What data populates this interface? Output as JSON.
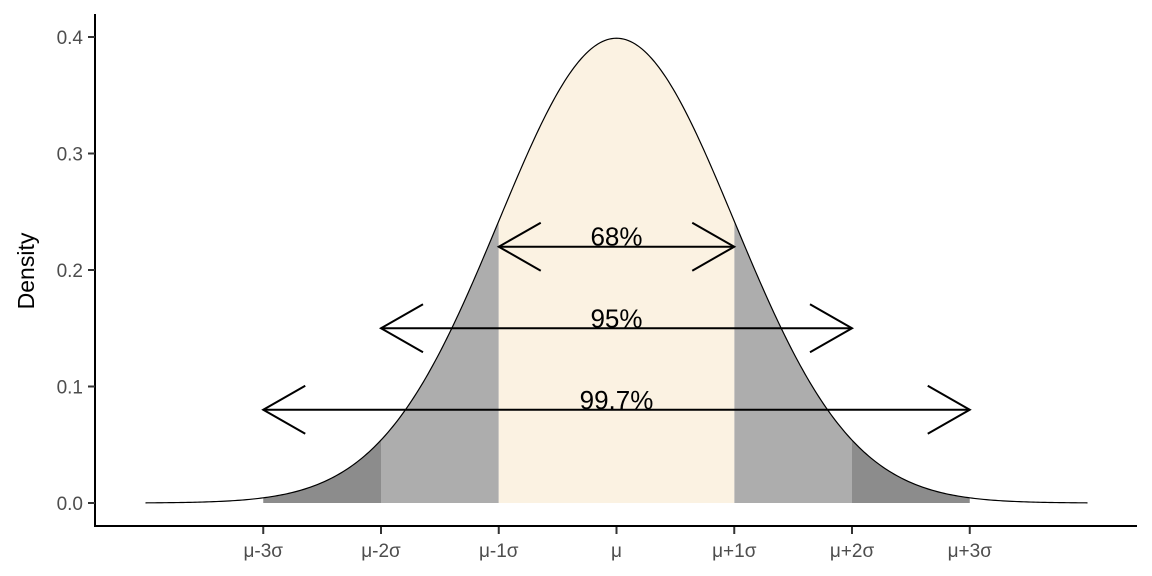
{
  "chart_data": {
    "type": "area",
    "title": "",
    "xlabel": "",
    "ylabel": "Density",
    "xlim": [
      -4.0,
      4.0
    ],
    "ylim": [
      0,
      0.4
    ],
    "grid": false,
    "legend": "none",
    "x_ticks": [
      {
        "value": -3,
        "label": "μ-3σ"
      },
      {
        "value": -2,
        "label": "μ-2σ"
      },
      {
        "value": -1,
        "label": "μ-1σ"
      },
      {
        "value": 0,
        "label": "μ"
      },
      {
        "value": 1,
        "label": "μ+1σ"
      },
      {
        "value": 2,
        "label": "μ+2σ"
      },
      {
        "value": 3,
        "label": "μ+3σ"
      }
    ],
    "y_ticks": [
      {
        "value": 0.0,
        "label": "0.0"
      },
      {
        "value": 0.1,
        "label": "0.1"
      },
      {
        "value": 0.2,
        "label": "0.2"
      },
      {
        "value": 0.3,
        "label": "0.3"
      },
      {
        "value": 0.4,
        "label": "0.4"
      }
    ],
    "curve": {
      "distribution": "normal",
      "mean": 0,
      "sd": 1,
      "x_range": [
        -4,
        4
      ]
    },
    "shaded_regions": [
      {
        "from": -3,
        "to": -2,
        "color": "#8c8c8c"
      },
      {
        "from": 2,
        "to": 3,
        "color": "#8c8c8c"
      },
      {
        "from": -2,
        "to": -1,
        "color": "#adadad"
      },
      {
        "from": 1,
        "to": 2,
        "color": "#adadad"
      },
      {
        "from": -1,
        "to": 1,
        "color": "#fbf2e2"
      }
    ],
    "annotations": [
      {
        "label": "68%",
        "from": -1,
        "to": 1,
        "y": 0.22
      },
      {
        "label": "95%",
        "from": -2,
        "to": 2,
        "y": 0.15
      },
      {
        "label": "99.7%",
        "from": -3,
        "to": 3,
        "y": 0.08
      }
    ]
  }
}
